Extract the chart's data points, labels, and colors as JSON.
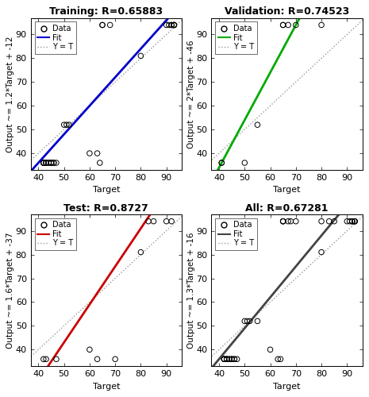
{
  "subplots": [
    {
      "title": "Training: R=0.65883",
      "ylabel": "Output ~= 1.2*Target + -12",
      "xlabel": "Target",
      "fit_slope": 1.2,
      "fit_intercept": -12,
      "fit_color": "#0000CC",
      "data_x": [
        42,
        42,
        42,
        42,
        43,
        43,
        43,
        44,
        44,
        45,
        45,
        45,
        46,
        46,
        47,
        50,
        51,
        52,
        60,
        63,
        64,
        65,
        65,
        68,
        80,
        90,
        91,
        92,
        92,
        93,
        93,
        93,
        93
      ],
      "data_y": [
        36,
        36,
        36,
        36,
        36,
        36,
        36,
        36,
        36,
        36,
        36,
        36,
        36,
        36,
        36,
        52,
        52,
        52,
        40,
        40,
        36,
        94,
        94,
        94,
        81,
        94,
        94,
        94,
        94,
        94,
        94,
        94,
        94
      ],
      "xlim": [
        37,
        96
      ],
      "ylim": [
        33,
        97
      ],
      "xticks": [
        40,
        50,
        60,
        70,
        80,
        90
      ],
      "yticks": [
        40,
        50,
        60,
        70,
        80,
        90
      ]
    },
    {
      "title": "Validation: R=0.74523",
      "ylabel": "Output ~= 2*Target + -46",
      "xlabel": "Target",
      "fit_slope": 2.0,
      "fit_intercept": -46,
      "fit_color": "#00AA00",
      "data_x": [
        41,
        41,
        50,
        55,
        65,
        65,
        67,
        70,
        80
      ],
      "data_y": [
        36,
        36,
        36,
        52,
        94,
        94,
        94,
        94,
        94
      ],
      "xlim": [
        37,
        96
      ],
      "ylim": [
        33,
        97
      ],
      "xticks": [
        40,
        50,
        60,
        70,
        80,
        90
      ],
      "yticks": [
        40,
        50,
        60,
        70,
        80,
        90
      ]
    },
    {
      "title": "Test: R=0.8727",
      "ylabel": "Output ~= 1.6*Target + -37",
      "xlabel": "Target",
      "fit_slope": 1.6,
      "fit_intercept": -37,
      "fit_color": "#CC0000",
      "data_x": [
        42,
        43,
        47,
        60,
        63,
        70,
        80,
        83,
        85,
        90,
        92
      ],
      "data_y": [
        36,
        36,
        36,
        40,
        36,
        36,
        81,
        94,
        94,
        94,
        94
      ],
      "xlim": [
        37,
        96
      ],
      "ylim": [
        33,
        97
      ],
      "xticks": [
        40,
        50,
        60,
        70,
        80,
        90
      ],
      "yticks": [
        40,
        50,
        60,
        70,
        80,
        90
      ]
    },
    {
      "title": "All: R=0.67281",
      "ylabel": "Output ~= 1.3*Target + -16",
      "xlabel": "Target",
      "fit_slope": 1.3,
      "fit_intercept": -16,
      "fit_color": "#444444",
      "data_x": [
        42,
        42,
        42,
        42,
        43,
        43,
        43,
        44,
        44,
        45,
        45,
        45,
        46,
        46,
        47,
        50,
        51,
        52,
        55,
        60,
        63,
        64,
        65,
        65,
        65,
        67,
        68,
        70,
        80,
        80,
        83,
        85,
        90,
        91,
        92,
        92,
        92,
        93,
        93,
        93,
        93
      ],
      "data_y": [
        36,
        36,
        36,
        36,
        36,
        36,
        36,
        36,
        36,
        36,
        36,
        36,
        36,
        36,
        36,
        52,
        52,
        52,
        52,
        40,
        36,
        36,
        94,
        94,
        94,
        94,
        94,
        94,
        81,
        94,
        94,
        94,
        94,
        94,
        94,
        94,
        94,
        94,
        94,
        94,
        94
      ],
      "xlim": [
        37,
        96
      ],
      "ylim": [
        33,
        97
      ],
      "xticks": [
        40,
        50,
        60,
        70,
        80,
        90
      ],
      "yticks": [
        40,
        50,
        60,
        70,
        80,
        90
      ]
    }
  ],
  "yt_line_color": "#999999",
  "bg_color": "#ffffff",
  "tick_label_size": 8,
  "axis_label_size": 8,
  "title_size": 9,
  "figsize": [
    4.65,
    5.0
  ],
  "dpi": 100
}
